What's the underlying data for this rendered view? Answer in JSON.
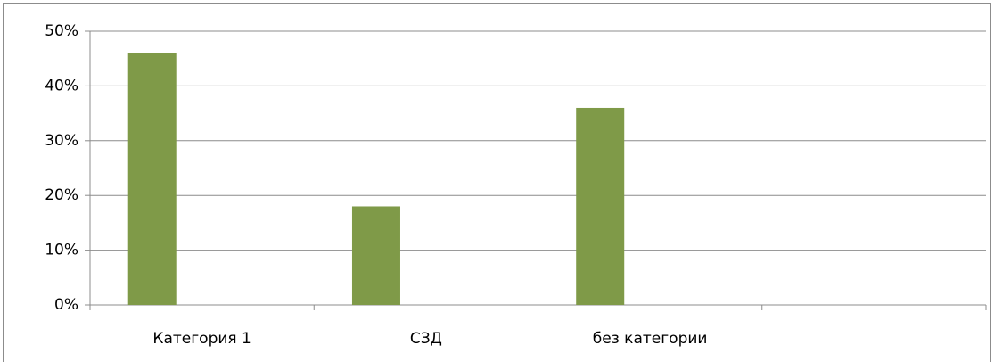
{
  "chart_data": {
    "type": "bar",
    "categories": [
      "Категория 1",
      "СЗД",
      "без категории",
      null
    ],
    "values": [
      46,
      18,
      36,
      null
    ],
    "color": "#7f9a48",
    "ylim": [
      0,
      50
    ],
    "yticks": [
      {
        "value": 0,
        "label": "0%"
      },
      {
        "value": 10,
        "label": "10%"
      },
      {
        "value": 20,
        "label": "20%"
      },
      {
        "value": 30,
        "label": "30%"
      },
      {
        "value": 40,
        "label": "40%"
      },
      {
        "value": 50,
        "label": "50%"
      }
    ],
    "grid": true
  }
}
